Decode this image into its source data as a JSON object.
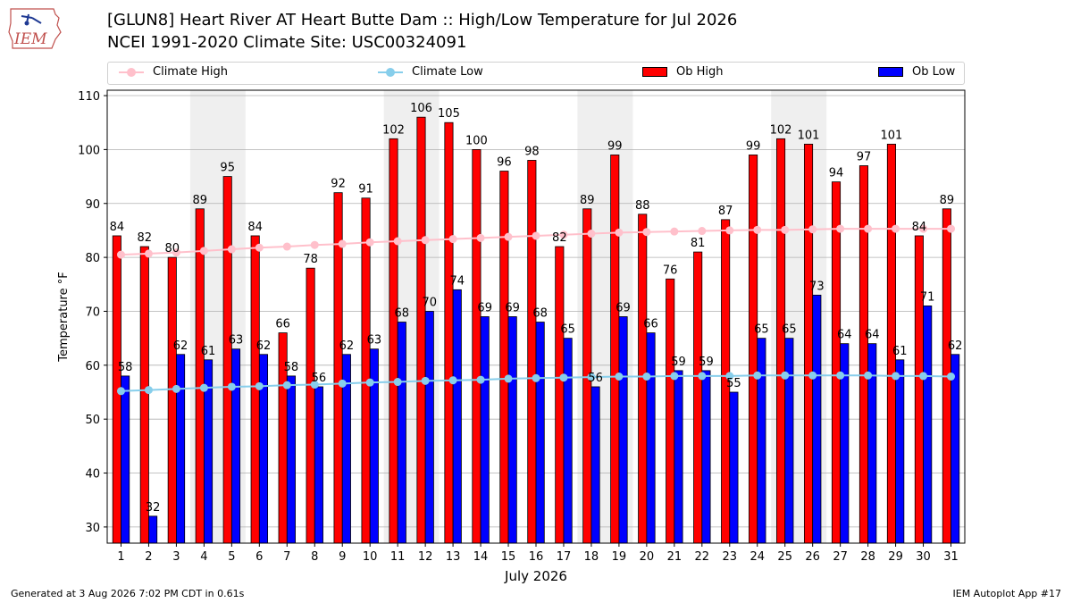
{
  "header": {
    "logo_text": "IEM",
    "title_line1": "[GLUN8] Heart River  AT Heart Butte Dam :: High/Low Temperature for Jul 2026",
    "title_line2": "NCEI 1991-2020 Climate Site: USC00324091"
  },
  "legend": {
    "placement": "top",
    "items": [
      {
        "label": "Climate High",
        "color": "#ffc0cb",
        "kind": "line"
      },
      {
        "label": "Climate Low",
        "color": "#87ceeb",
        "kind": "line"
      },
      {
        "label": "Ob High",
        "color": "#ff0000",
        "kind": "box"
      },
      {
        "label": "Ob Low",
        "color": "#0000ff",
        "kind": "box"
      }
    ]
  },
  "chart_data": {
    "type": "bar",
    "title": "[GLUN8] Heart River  AT Heart Butte Dam :: High/Low Temperature for Jul 2026",
    "xlabel": "July 2026",
    "ylabel": "Temperature °F",
    "ylim": [
      27,
      111
    ],
    "yticks": [
      30,
      40,
      50,
      60,
      70,
      80,
      90,
      100,
      110
    ],
    "grid": true,
    "categories": [
      "1",
      "2",
      "3",
      "4",
      "5",
      "6",
      "7",
      "8",
      "9",
      "10",
      "11",
      "12",
      "13",
      "14",
      "15",
      "16",
      "17",
      "18",
      "19",
      "20",
      "21",
      "22",
      "23",
      "24",
      "25",
      "26",
      "27",
      "28",
      "29",
      "30",
      "31"
    ],
    "weekend_shading": [
      [
        4,
        5
      ],
      [
        11,
        12
      ],
      [
        18,
        19
      ],
      [
        25,
        26
      ]
    ],
    "series": [
      {
        "name": "Ob High",
        "type": "bar",
        "color": "#ff0000",
        "values": [
          84,
          82,
          80,
          89,
          95,
          84,
          66,
          78,
          92,
          91,
          102,
          106,
          105,
          100,
          96,
          98,
          82,
          89,
          99,
          88,
          76,
          81,
          87,
          99,
          102,
          101,
          94,
          97,
          101,
          84,
          89
        ]
      },
      {
        "name": "Ob Low",
        "type": "bar",
        "color": "#0000ff",
        "values": [
          58,
          32,
          62,
          61,
          63,
          62,
          58,
          56,
          62,
          63,
          68,
          70,
          74,
          69,
          69,
          68,
          65,
          56,
          69,
          66,
          59,
          59,
          55,
          65,
          65,
          73,
          64,
          64,
          61,
          71,
          62
        ]
      },
      {
        "name": "Climate High",
        "type": "line",
        "color": "#ffc0cb",
        "values": [
          80.5,
          80.7,
          80.9,
          81.2,
          81.5,
          81.8,
          82.0,
          82.3,
          82.5,
          82.8,
          83.0,
          83.2,
          83.4,
          83.6,
          83.8,
          84.0,
          84.2,
          84.4,
          84.6,
          84.7,
          84.8,
          84.9,
          85.0,
          85.1,
          85.1,
          85.2,
          85.3,
          85.3,
          85.3,
          85.3,
          85.3
        ]
      },
      {
        "name": "Climate Low",
        "type": "line",
        "color": "#87ceeb",
        "values": [
          55.2,
          55.4,
          55.6,
          55.8,
          56.0,
          56.1,
          56.3,
          56.4,
          56.6,
          56.8,
          56.9,
          57.1,
          57.2,
          57.3,
          57.5,
          57.6,
          57.7,
          57.8,
          57.9,
          57.9,
          58.0,
          58.0,
          58.0,
          58.1,
          58.1,
          58.1,
          58.1,
          58.1,
          58.0,
          58.0,
          57.9
        ]
      }
    ]
  },
  "footer": {
    "left": "Generated at 3 Aug 2026 7:02 PM CDT in 0.61s",
    "right": "IEM Autoplot App #17"
  }
}
